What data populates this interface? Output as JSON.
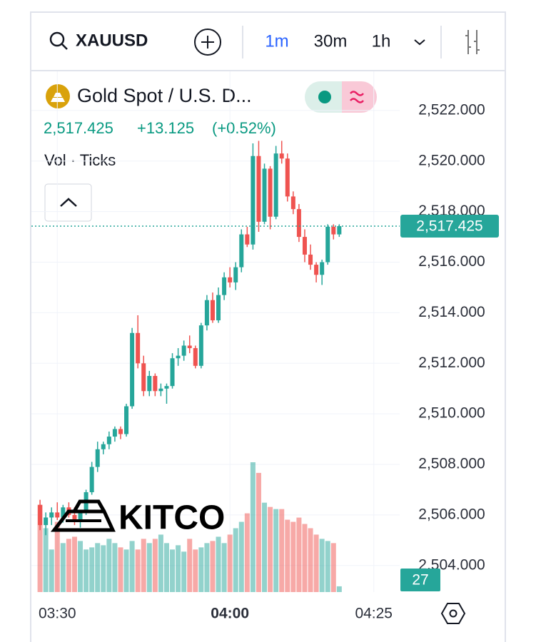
{
  "toolbar": {
    "symbol": "XAUUSD",
    "intervals": [
      "1m",
      "30m",
      "1h"
    ]
  },
  "legend": {
    "title": "Gold Spot / U.S. D...",
    "price": "2,517.425",
    "change": "+13.125",
    "change_pct": "(+0.52%)",
    "volume_label": "Vol · Ticks"
  },
  "watermark": "KITCO",
  "chart_data": {
    "type": "candlestick",
    "x": [
      207,
      208,
      209,
      210,
      211,
      212,
      213,
      214,
      215,
      216,
      217,
      218,
      219,
      220,
      221,
      222,
      223,
      224,
      225,
      226,
      227,
      228,
      229,
      230,
      231,
      232,
      233,
      234,
      235,
      236,
      237,
      238,
      239,
      240,
      241,
      242,
      243,
      244,
      245,
      246,
      247,
      248,
      249,
      250,
      251,
      252,
      253,
      254,
      255,
      256,
      257,
      258,
      259
    ],
    "open": [
      2506.4,
      2505.6,
      2505.9,
      2506.1,
      2505.9,
      2506.3,
      2506.0,
      2505.8,
      2506.1,
      2506.9,
      2507.9,
      2508.6,
      2508.8,
      2509.1,
      2509.4,
      2509.2,
      2510.3,
      2513.2,
      2512.0,
      2510.9,
      2511.5,
      2510.9,
      2511.0,
      2511.1,
      2512.2,
      2512.3,
      2512.7,
      2512.6,
      2511.9,
      2513.5,
      2514.5,
      2513.7,
      2514.7,
      2515.4,
      2515.2,
      2515.8,
      2517.1,
      2516.7,
      2520.2,
      2517.6,
      2519.7,
      2517.8,
      2520.3,
      2520.1,
      2518.6,
      2518.1,
      2517.0,
      2516.3,
      2515.9,
      2515.5,
      2516.0,
      2517.4,
      2517.1
    ],
    "high": [
      2506.6,
      2506.1,
      2506.3,
      2506.5,
      2506.4,
      2506.5,
      2506.3,
      2506.2,
      2507.0,
      2508.1,
      2508.9,
      2508.9,
      2509.3,
      2509.5,
      2509.5,
      2510.4,
      2513.4,
      2513.9,
      2512.3,
      2511.7,
      2511.6,
      2511.2,
      2511.2,
      2512.4,
      2512.6,
      2512.9,
      2513.1,
      2512.7,
      2513.6,
      2514.7,
      2514.8,
      2515.0,
      2515.6,
      2515.8,
      2516.0,
      2517.3,
      2517.4,
      2520.7,
      2520.8,
      2519.9,
      2519.8,
      2520.6,
      2520.8,
      2520.3,
      2518.8,
      2518.3,
      2517.3,
      2516.7,
      2516.0,
      2516.1,
      2517.5,
      2517.5,
      2517.5
    ],
    "low": [
      2505.4,
      2505.2,
      2505.6,
      2505.8,
      2505.7,
      2505.9,
      2505.6,
      2505.5,
      2506.0,
      2506.8,
      2507.7,
      2508.4,
      2508.6,
      2508.9,
      2509.0,
      2509.1,
      2510.2,
      2511.8,
      2510.7,
      2510.7,
      2510.7,
      2510.7,
      2510.4,
      2511.0,
      2511.9,
      2512.1,
      2512.4,
      2511.8,
      2511.8,
      2513.3,
      2513.6,
      2513.6,
      2514.5,
      2515.0,
      2514.9,
      2515.6,
      2516.6,
      2516.5,
      2517.2,
      2517.5,
      2517.3,
      2517.7,
      2519.9,
      2518.4,
      2517.9,
      2516.8,
      2516.0,
      2515.7,
      2515.2,
      2515.1,
      2515.9,
      2516.9,
      2517.0
    ],
    "close": [
      2505.6,
      2505.9,
      2506.1,
      2505.9,
      2506.3,
      2506.0,
      2505.8,
      2506.1,
      2506.9,
      2507.9,
      2508.6,
      2508.8,
      2509.1,
      2509.4,
      2509.2,
      2510.3,
      2513.2,
      2512.0,
      2510.9,
      2511.5,
      2510.9,
      2511.0,
      2511.1,
      2512.2,
      2512.3,
      2512.7,
      2512.6,
      2511.9,
      2513.5,
      2514.5,
      2513.7,
      2514.7,
      2515.4,
      2515.2,
      2515.8,
      2517.1,
      2516.7,
      2520.2,
      2517.6,
      2519.7,
      2517.8,
      2520.3,
      2520.1,
      2518.6,
      2518.1,
      2517.0,
      2516.3,
      2515.9,
      2515.5,
      2516.0,
      2517.4,
      2517.1,
      2517.425
    ],
    "volume": [
      410,
      300,
      200,
      330,
      230,
      250,
      260,
      240,
      200,
      210,
      230,
      220,
      250,
      230,
      210,
      200,
      240,
      200,
      250,
      230,
      250,
      270,
      230,
      200,
      220,
      190,
      250,
      200,
      210,
      230,
      240,
      260,
      230,
      270,
      300,
      330,
      370,
      610,
      560,
      420,
      400,
      390,
      390,
      340,
      330,
      350,
      320,
      300,
      270,
      250,
      240,
      230,
      27
    ],
    "colors": {
      "up": "#26a69a",
      "down": "#ef5350"
    },
    "last_price": {
      "value": 2517.425,
      "label": "2,517.425"
    },
    "xlim": [
      205.5,
      269.5
    ],
    "xticks": [
      {
        "value": 210,
        "label": "03:30"
      },
      {
        "value": 240,
        "label": "04:00"
      },
      {
        "value": 265,
        "label": "04:25"
      }
    ],
    "ylim": [
      2502.95,
      2523.55
    ],
    "yticks": [
      {
        "value": 2504,
        "label": "2,504.000"
      },
      {
        "value": 2506,
        "label": "2,506.000"
      },
      {
        "value": 2508,
        "label": "2,508.000"
      },
      {
        "value": 2510,
        "label": "2,510.000"
      },
      {
        "value": 2512,
        "label": "2,512.000"
      },
      {
        "value": 2514,
        "label": "2,514.000"
      },
      {
        "value": 2516,
        "label": "2,516.000"
      },
      {
        "value": 2518,
        "label": "2,518.000"
      },
      {
        "value": 2520,
        "label": "2,520.000"
      },
      {
        "value": 2522,
        "label": "2,522.000"
      }
    ],
    "grid": true
  }
}
